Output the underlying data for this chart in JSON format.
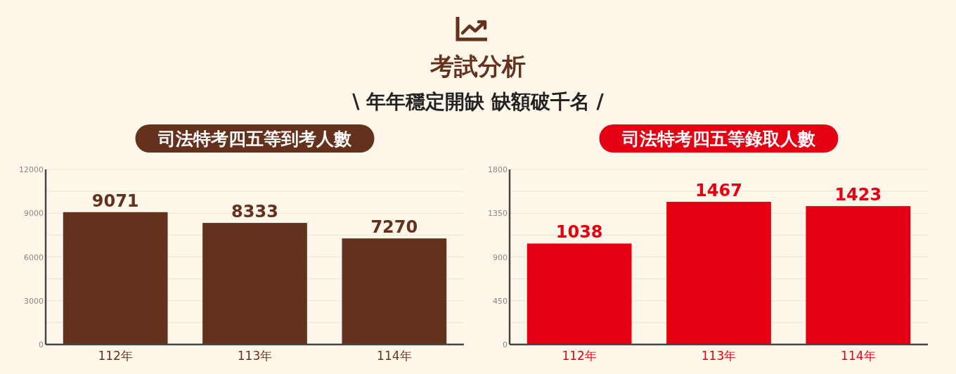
{
  "chart_data": [
    {
      "type": "other",
      "title": "考試分析",
      "subtitle": "\\ 年年穩定開缺 缺額破千名 /"
    },
    {
      "type": "bar",
      "title": "司法特考四五等到考人數",
      "categories": [
        "112年",
        "113年",
        "114年"
      ],
      "values": [
        9071,
        8333,
        7270
      ],
      "color": "#63311c",
      "ylim": [
        0,
        12000
      ],
      "yticks": [
        0,
        {
          "value": 1500,
          "label": null
        },
        3000,
        {
          "value": 4500,
          "label": null
        },
        6000,
        {
          "value": 7500,
          "label": null
        },
        9000,
        {
          "value": 10500,
          "label": null
        },
        12000
      ],
      "grid": "y",
      "data_labels": true
    },
    {
      "type": "bar",
      "title": "司法特考四五等錄取人數",
      "categories": [
        "112年",
        "113年",
        "114年"
      ],
      "values": [
        1038,
        1467,
        1423
      ],
      "color": "#e30013",
      "ylim": [
        0,
        1800
      ],
      "yticks": [
        0,
        {
          "value": 225,
          "label": null
        },
        450,
        {
          "value": 675,
          "label": null
        },
        900,
        {
          "value": 1125,
          "label": null
        },
        1350,
        {
          "value": 1575,
          "label": null
        },
        1800
      ],
      "grid": "y",
      "data_labels": true
    }
  ]
}
